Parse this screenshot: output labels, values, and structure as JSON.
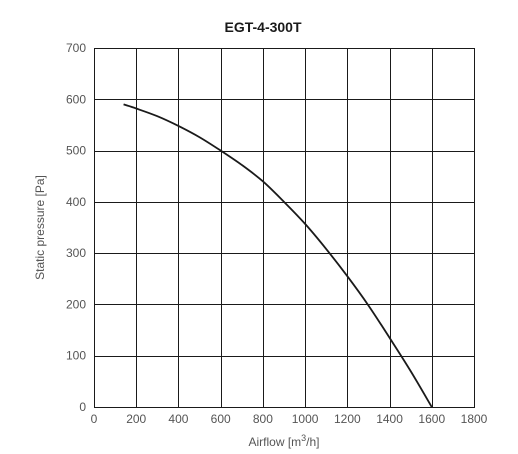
{
  "chart_data": {
    "type": "line",
    "title": "EGT-4-300T",
    "xlabel": "Airflow [m³/h]",
    "ylabel": "Static pressure [Pa]",
    "xlim": [
      0,
      1800
    ],
    "ylim": [
      0,
      700
    ],
    "x_ticks": [
      0,
      200,
      400,
      600,
      800,
      1000,
      1200,
      1400,
      1600,
      1800
    ],
    "y_ticks": [
      0,
      100,
      200,
      300,
      400,
      500,
      600,
      700
    ],
    "grid": true,
    "legend": "none",
    "colors": {
      "curve": "#1a1a1a",
      "grid": "#1a1a1a",
      "text": "#555555"
    },
    "series": [
      {
        "x": [
          140,
          200,
          300,
          400,
          500,
          600,
          700,
          800,
          900,
          1000,
          1100,
          1200,
          1300,
          1400,
          1500,
          1600
        ],
        "y": [
          590,
          582,
          567,
          548,
          526,
          500,
          472,
          440,
          400,
          357,
          308,
          255,
          198,
          135,
          70,
          0
        ]
      }
    ]
  }
}
